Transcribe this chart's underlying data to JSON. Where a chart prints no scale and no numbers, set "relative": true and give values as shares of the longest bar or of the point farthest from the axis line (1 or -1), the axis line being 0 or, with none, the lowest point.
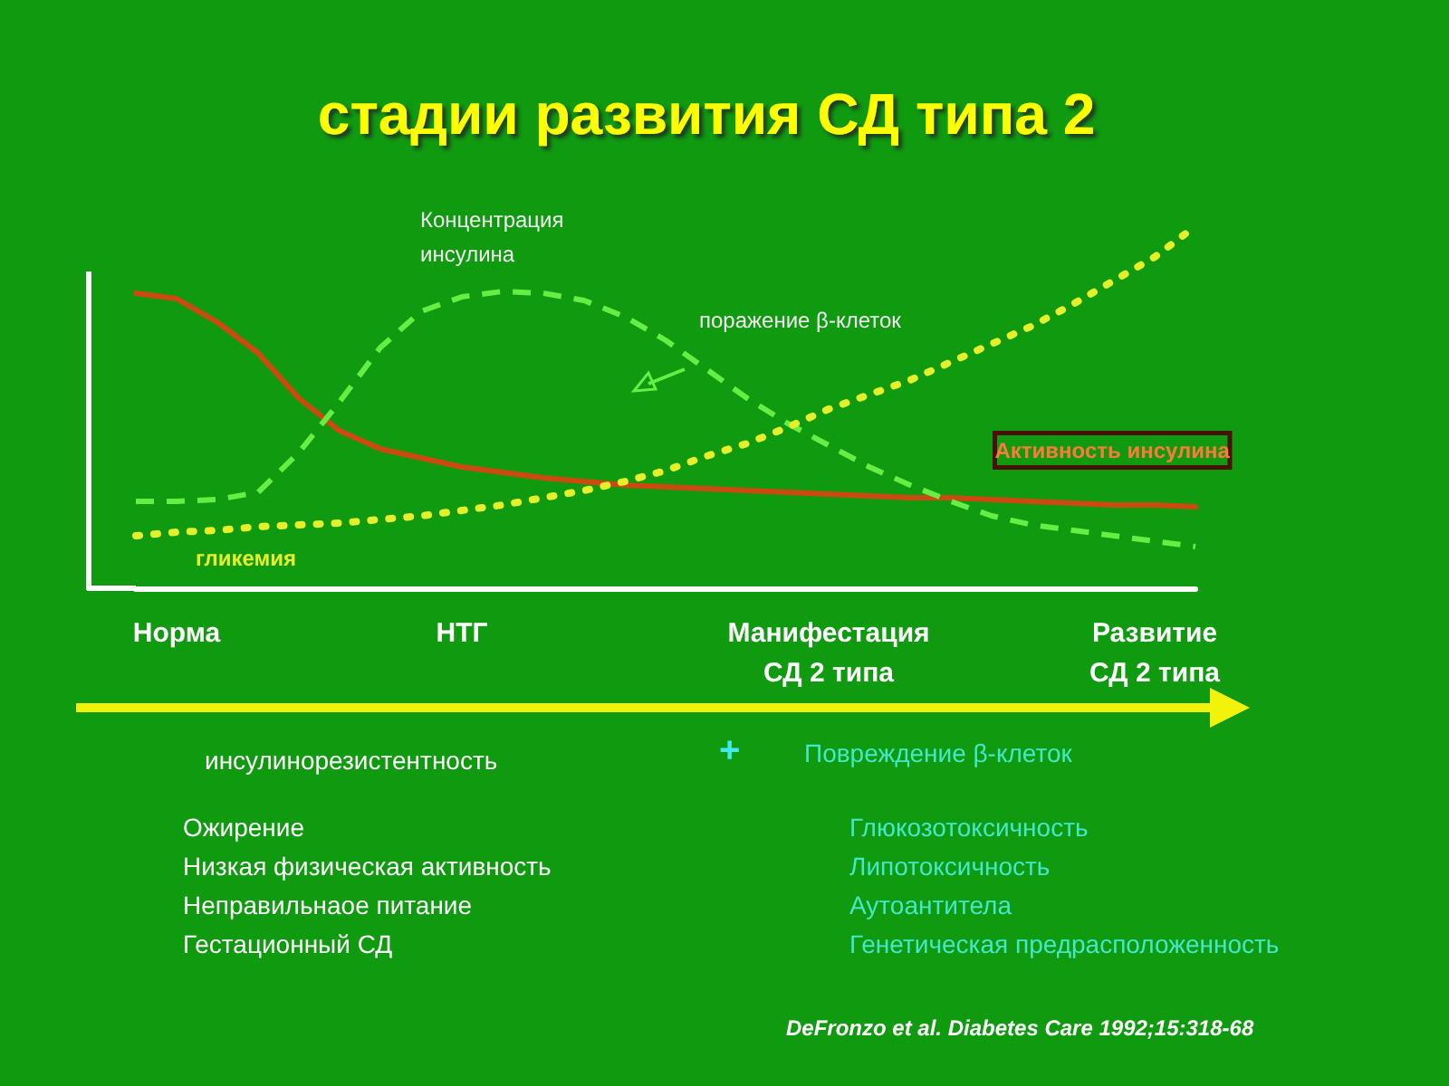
{
  "chart_data": {
    "type": "line",
    "relative": true,
    "title": "стадии развития СД типа 2",
    "categories": [
      null,
      "Норма",
      null,
      null,
      null,
      null,
      null,
      null,
      "НТГ",
      null,
      null,
      null,
      null,
      null,
      null,
      null,
      null,
      "Манифестация\nСД 2 типа",
      null,
      null,
      null,
      null,
      null,
      null,
      null,
      "Развитие\nСД 2 типа",
      null
    ],
    "series": [
      {
        "name": "Активность инсулина",
        "color": "#cc4a10",
        "line_style": "solid",
        "values": [
          0.815,
          0.8,
          0.735,
          0.65,
          0.525,
          0.435,
          0.385,
          0.36,
          0.335,
          0.32,
          0.305,
          0.295,
          0.285,
          0.28,
          0.275,
          0.27,
          0.265,
          0.26,
          0.255,
          0.25,
          0.25,
          0.245,
          0.24,
          0.235,
          0.23,
          0.23,
          0.225
        ]
      },
      {
        "name": "Концентрация\nинсулина",
        "color": "#66ee44",
        "line_style": "dashed",
        "values": [
          0.24,
          0.24,
          0.245,
          0.265,
          0.375,
          0.515,
          0.665,
          0.765,
          0.805,
          0.82,
          0.815,
          0.795,
          0.75,
          0.685,
          0.605,
          0.525,
          0.455,
          0.395,
          0.335,
          0.285,
          0.24,
          0.2,
          0.175,
          0.16,
          0.145,
          0.13,
          0.115
        ]
      },
      {
        "name": "гликемия",
        "color": "#e6f02a",
        "line_style": "dotted",
        "values": [
          0.145,
          0.155,
          0.16,
          0.17,
          0.175,
          0.18,
          0.19,
          0.2,
          0.215,
          0.23,
          0.25,
          0.27,
          0.295,
          0.325,
          0.365,
          0.4,
          0.445,
          0.495,
          0.535,
          0.575,
          0.625,
          0.675,
          0.725,
          0.785,
          0.85,
          0.915,
          1
        ]
      }
    ],
    "marker": "none",
    "grid": false,
    "legend": false,
    "annotations": [
      "поражение β-клеток",
      "инсулинорезистентность",
      "+",
      "Повреждение β-клеток",
      "Ожирение\nНизкая физическая активность\nНеправильнаое питание\nГестационный СД",
      "Глюкозотоксичность\nЛипотоксичность\nАутоантитела\nГенетическая предрасположенность",
      "DeFronzo et al. Diabetes Care 1992;15:318-68"
    ]
  }
}
